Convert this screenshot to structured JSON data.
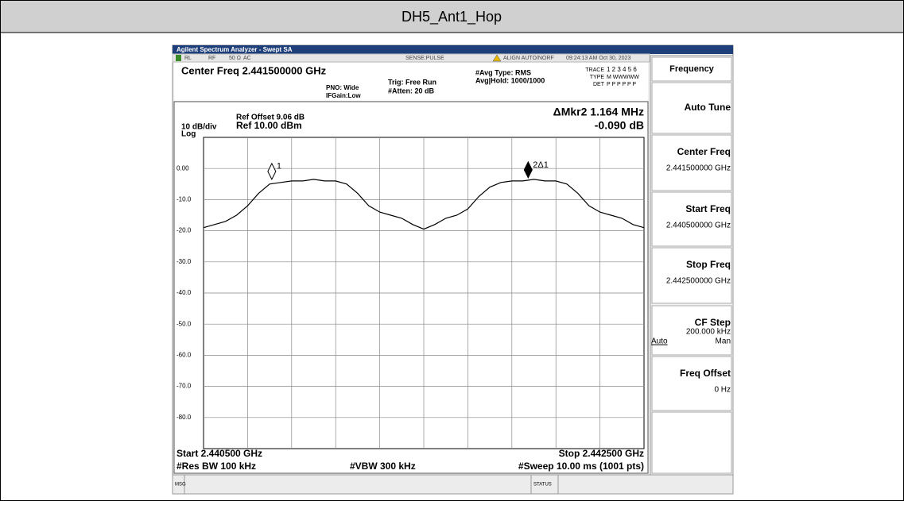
{
  "header": {
    "title": "DH5_Ant1_Hop"
  },
  "analyzer": {
    "window_title": "Agilent Spectrum Analyzer - Swept SA",
    "status_bar": [
      "RL",
      "RF",
      "50 Ω",
      "AC",
      "SENSE:PULSE",
      "ALIGN AUTO/NORF",
      "09:24:13 AM Oct 30, 2023"
    ],
    "center_freq": "Center Freq 2.441500000 GHz",
    "pno": "PNO: Wide",
    "ifgain": "IFGain:Low",
    "trig": "Trig: Free Run",
    "atten": "#Atten: 20 dB",
    "avg_type": "#Avg Type: RMS",
    "avg_hold": "Avg|Hold: 1000/1000",
    "trace_label": "TRACE",
    "trace_nums": "1 2 3 4 5 6",
    "type_label": "TYPE",
    "type_val": "M WWWWW",
    "det_label": "DET",
    "det_val": "P P P P P P",
    "ref_offset": "Ref Offset 9.06 dB",
    "scale": "10 dB/div",
    "ref": "Ref 10.00 dBm",
    "log": "Log",
    "marker_readout": "ΔMkr2 1.164 MHz",
    "marker_delta": "-0.090 dB",
    "start": "Start 2.440500 GHz",
    "stop": "Stop 2.442500 GHz",
    "rbw": "#Res BW 100 kHz",
    "vbw": "#VBW 300 kHz",
    "sweep": "#Sweep  10.00 ms (1001 pts)",
    "msg": "MSG",
    "status": "STATUS",
    "softkeys": [
      {
        "title": "Frequency"
      },
      {
        "title": "Auto Tune"
      },
      {
        "title": "Center Freq",
        "value": "2.441500000 GHz"
      },
      {
        "title": "Start Freq",
        "value": "2.440500000 GHz"
      },
      {
        "title": "Stop Freq",
        "value": "2.442500000 GHz"
      },
      {
        "title": "CF Step",
        "value": "200.000 kHz",
        "left": "Auto",
        "right": "Man"
      },
      {
        "title": "Freq Offset",
        "value": "0 Hz"
      }
    ]
  },
  "chart_data": {
    "type": "line",
    "x": [
      2.4405,
      2.44055,
      2.4406,
      2.44065,
      2.4407,
      2.44075,
      2.4408,
      2.44085,
      2.4409,
      2.44095,
      2.441,
      2.44105,
      2.4411,
      2.44115,
      2.4412,
      2.44125,
      2.4413,
      2.44135,
      2.4414,
      2.44145,
      2.4415,
      2.44155,
      2.4416,
      2.44165,
      2.4417,
      2.44175,
      2.4418,
      2.44185,
      2.4419,
      2.44195,
      2.442,
      2.44205,
      2.4421,
      2.44215,
      2.4422,
      2.44225,
      2.4423,
      2.44235,
      2.4424,
      2.44245,
      2.4425
    ],
    "series": [
      {
        "color": "#000000",
        "values": [
          -19,
          -18,
          -17,
          -15,
          -12,
          -8,
          -5,
          -4.5,
          -4,
          -4,
          -3.5,
          -4,
          -4,
          -5,
          -8,
          -12,
          -14,
          -15,
          -16,
          -18,
          -19.5,
          -18,
          -16,
          -15,
          -13,
          -9,
          -6,
          -4.5,
          -4,
          -4,
          -3.5,
          -4,
          -4,
          -5,
          -8,
          -12,
          -14,
          -15,
          -16,
          -18,
          -19
        ]
      }
    ],
    "xlim": [
      2.4405,
      2.4425
    ],
    "ylim": [
      -90,
      10
    ],
    "yticks": [
      {
        "value": 0,
        "label": "0.00"
      },
      {
        "value": -10,
        "label": "-10.0"
      },
      {
        "value": -20,
        "label": "-20.0"
      },
      {
        "value": -30,
        "label": "-30.0"
      },
      {
        "value": -40,
        "label": "-40.0"
      },
      {
        "value": -50,
        "label": "-50.0"
      },
      {
        "value": -60,
        "label": "-60.0"
      },
      {
        "value": -70,
        "label": "-70.0"
      },
      {
        "value": -80,
        "label": "-80.0"
      }
    ],
    "grid": true,
    "markers": [
      {
        "label": "1",
        "x": 2.44081,
        "y": -4.5,
        "filled": false
      },
      {
        "label": "2Δ1",
        "x": 2.441974,
        "y": -4,
        "filled": true
      }
    ]
  }
}
